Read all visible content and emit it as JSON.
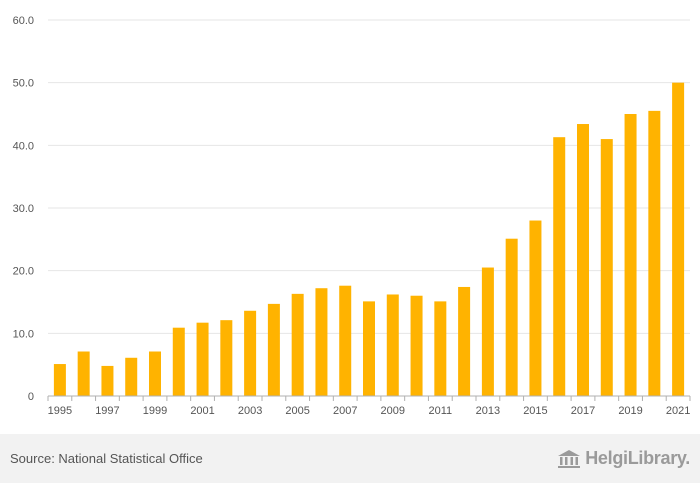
{
  "chart_data": {
    "type": "bar",
    "title": "",
    "xlabel": "",
    "ylabel": "",
    "categories": [
      "1995",
      "1996",
      "1997",
      "1998",
      "1999",
      "2000",
      "2001",
      "2002",
      "2003",
      "2004",
      "2005",
      "2006",
      "2007",
      "2008",
      "2009",
      "2010",
      "2011",
      "2012",
      "2013",
      "2014",
      "2015",
      "2016",
      "2017",
      "2018",
      "2019",
      "2020",
      "2021"
    ],
    "x_tick_labels": [
      "1995",
      "1997",
      "1999",
      "2001",
      "2003",
      "2005",
      "2007",
      "2009",
      "2011",
      "2013",
      "2015",
      "2017",
      "2019",
      "2021"
    ],
    "values": [
      5.1,
      7.1,
      4.8,
      6.1,
      7.1,
      10.9,
      11.7,
      12.1,
      13.6,
      14.7,
      16.3,
      17.2,
      17.6,
      15.1,
      16.2,
      16.0,
      15.1,
      17.4,
      20.5,
      25.1,
      28.0,
      41.3,
      43.4,
      41.0,
      45.0,
      45.5,
      50.0
    ],
    "ylim": [
      0,
      60
    ],
    "y_ticks": [
      0,
      10,
      20,
      30,
      40,
      50,
      60
    ],
    "y_tick_labels": [
      "0",
      "10.0",
      "20.0",
      "30.0",
      "40.0",
      "50.0",
      "60.0"
    ],
    "grid": true,
    "bar_color": "#ffb300"
  },
  "footer": {
    "source": "Source: National Statistical Office",
    "logo_text": "HelgiLibrary."
  },
  "colors": {
    "grid": "#e6e6e6",
    "axis": "#b0b0b0",
    "tick_text": "#555555",
    "footer_bg": "#f2f2f2"
  }
}
